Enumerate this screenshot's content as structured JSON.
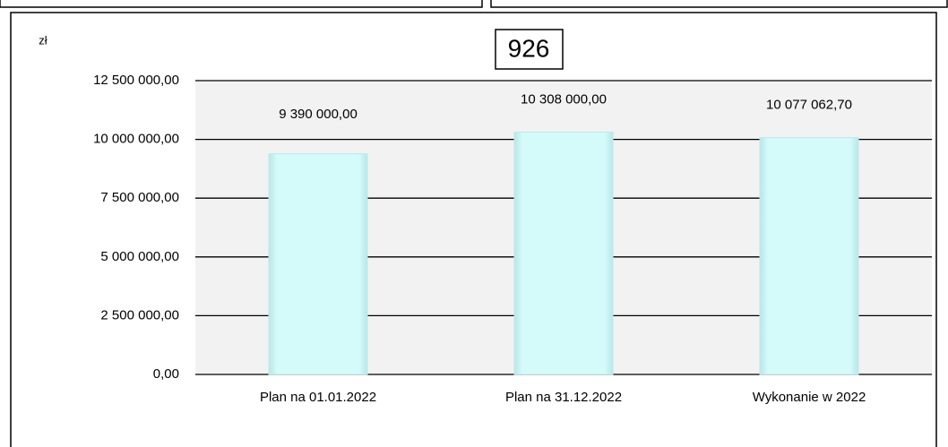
{
  "chart_data": {
    "type": "bar",
    "title": "926",
    "y_label": "zł",
    "categories": [
      "Plan na 01.01.2022",
      "Plan na 31.12.2022",
      "Wykonanie w 2022"
    ],
    "values": [
      9390000,
      10308000,
      10077062.7
    ],
    "value_labels": [
      "9 390 000,00",
      "10 308 000,00",
      "10 077 062,70"
    ],
    "color": "#d4fafa",
    "ylim": [
      0,
      12500000
    ],
    "yticks": [
      {
        "value": 0,
        "label": "0,00"
      },
      {
        "value": 2500000,
        "label": "2 500 000,00"
      },
      {
        "value": 5000000,
        "label": "5 000 000,00"
      },
      {
        "value": 7500000,
        "label": "7 500 000,00"
      },
      {
        "value": 10000000,
        "label": "10 000 000,00"
      },
      {
        "value": 12500000,
        "label": "12 500 000,00"
      }
    ],
    "grid": true
  }
}
